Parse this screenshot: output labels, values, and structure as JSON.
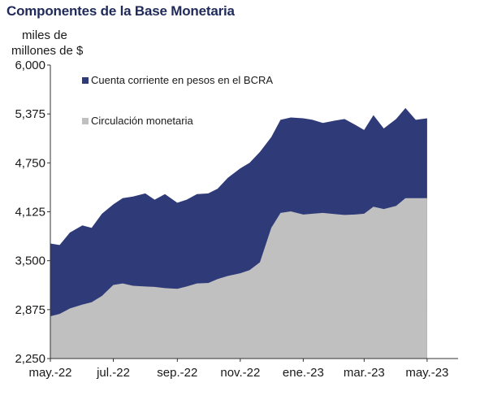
{
  "chart_data": {
    "type": "area",
    "title": "Componentes de la Base Monetaria",
    "ylabel_lines": [
      "miles de",
      "millones de $"
    ],
    "ylim": [
      2250,
      6000
    ],
    "yticks": [
      "6,000",
      "5,375",
      "4,750",
      "4,125",
      "3,500",
      "2,875",
      "2,250"
    ],
    "ytick_values": [
      6000,
      5375,
      4750,
      4125,
      3500,
      2875,
      2250
    ],
    "xlim": [
      "2022-05-01",
      "2023-05-31"
    ],
    "xticks": [
      {
        "label": "may.-22",
        "date": "2022-05-01"
      },
      {
        "label": "jul.-22",
        "date": "2022-07-01"
      },
      {
        "label": "sep.-22",
        "date": "2022-09-01"
      },
      {
        "label": "nov.-22",
        "date": "2022-11-01"
      },
      {
        "label": "ene.-23",
        "date": "2023-01-01"
      },
      {
        "label": "mar.-23",
        "date": "2023-03-01"
      },
      {
        "label": "may.-23",
        "date": "2023-05-01"
      }
    ],
    "legend_position": "top-left",
    "grid": false,
    "stacked": true,
    "series": [
      {
        "name": "Circulación monetaria",
        "color": "#c0c0c0",
        "points": [
          [
            "2022-05-01",
            2790
          ],
          [
            "2022-05-10",
            2820
          ],
          [
            "2022-05-20",
            2890
          ],
          [
            "2022-06-01",
            2940
          ],
          [
            "2022-06-10",
            2970
          ],
          [
            "2022-06-20",
            3050
          ],
          [
            "2022-07-01",
            3190
          ],
          [
            "2022-07-10",
            3210
          ],
          [
            "2022-07-20",
            3180
          ],
          [
            "2022-08-01",
            3170
          ],
          [
            "2022-08-10",
            3165
          ],
          [
            "2022-08-20",
            3150
          ],
          [
            "2022-09-01",
            3140
          ],
          [
            "2022-09-10",
            3170
          ],
          [
            "2022-09-20",
            3210
          ],
          [
            "2022-10-01",
            3215
          ],
          [
            "2022-10-10",
            3265
          ],
          [
            "2022-10-20",
            3305
          ],
          [
            "2022-11-01",
            3340
          ],
          [
            "2022-11-10",
            3380
          ],
          [
            "2022-11-20",
            3480
          ],
          [
            "2022-12-01",
            3920
          ],
          [
            "2022-12-10",
            4110
          ],
          [
            "2022-12-20",
            4130
          ],
          [
            "2023-01-01",
            4090
          ],
          [
            "2023-01-10",
            4100
          ],
          [
            "2023-01-20",
            4110
          ],
          [
            "2023-02-01",
            4095
          ],
          [
            "2023-02-10",
            4085
          ],
          [
            "2023-02-20",
            4090
          ],
          [
            "2023-03-01",
            4100
          ],
          [
            "2023-03-10",
            4190
          ],
          [
            "2023-03-20",
            4160
          ],
          [
            "2023-04-01",
            4200
          ],
          [
            "2023-04-10",
            4300
          ],
          [
            "2023-04-20",
            4300
          ],
          [
            "2023-05-01",
            4300
          ]
        ]
      },
      {
        "name": "Cuenta corriente en pesos en el BCRA",
        "color": "#2f3a78",
        "total_points": [
          [
            "2022-05-01",
            3720
          ],
          [
            "2022-05-10",
            3700
          ],
          [
            "2022-05-20",
            3860
          ],
          [
            "2022-06-01",
            3950
          ],
          [
            "2022-06-10",
            3920
          ],
          [
            "2022-06-20",
            4100
          ],
          [
            "2022-07-01",
            4220
          ],
          [
            "2022-07-10",
            4300
          ],
          [
            "2022-07-20",
            4320
          ],
          [
            "2022-08-01",
            4360
          ],
          [
            "2022-08-10",
            4280
          ],
          [
            "2022-08-20",
            4350
          ],
          [
            "2022-09-01",
            4240
          ],
          [
            "2022-09-10",
            4280
          ],
          [
            "2022-09-20",
            4350
          ],
          [
            "2022-10-01",
            4360
          ],
          [
            "2022-10-10",
            4420
          ],
          [
            "2022-10-20",
            4560
          ],
          [
            "2022-11-01",
            4680
          ],
          [
            "2022-11-10",
            4750
          ],
          [
            "2022-11-20",
            4890
          ],
          [
            "2022-12-01",
            5080
          ],
          [
            "2022-12-10",
            5300
          ],
          [
            "2022-12-20",
            5330
          ],
          [
            "2023-01-01",
            5320
          ],
          [
            "2023-01-10",
            5300
          ],
          [
            "2023-01-20",
            5260
          ],
          [
            "2023-02-01",
            5290
          ],
          [
            "2023-02-10",
            5310
          ],
          [
            "2023-02-20",
            5240
          ],
          [
            "2023-03-01",
            5170
          ],
          [
            "2023-03-10",
            5360
          ],
          [
            "2023-03-20",
            5190
          ],
          [
            "2023-04-01",
            5310
          ],
          [
            "2023-04-10",
            5450
          ],
          [
            "2023-04-20",
            5300
          ],
          [
            "2023-05-01",
            5320
          ]
        ]
      }
    ]
  }
}
